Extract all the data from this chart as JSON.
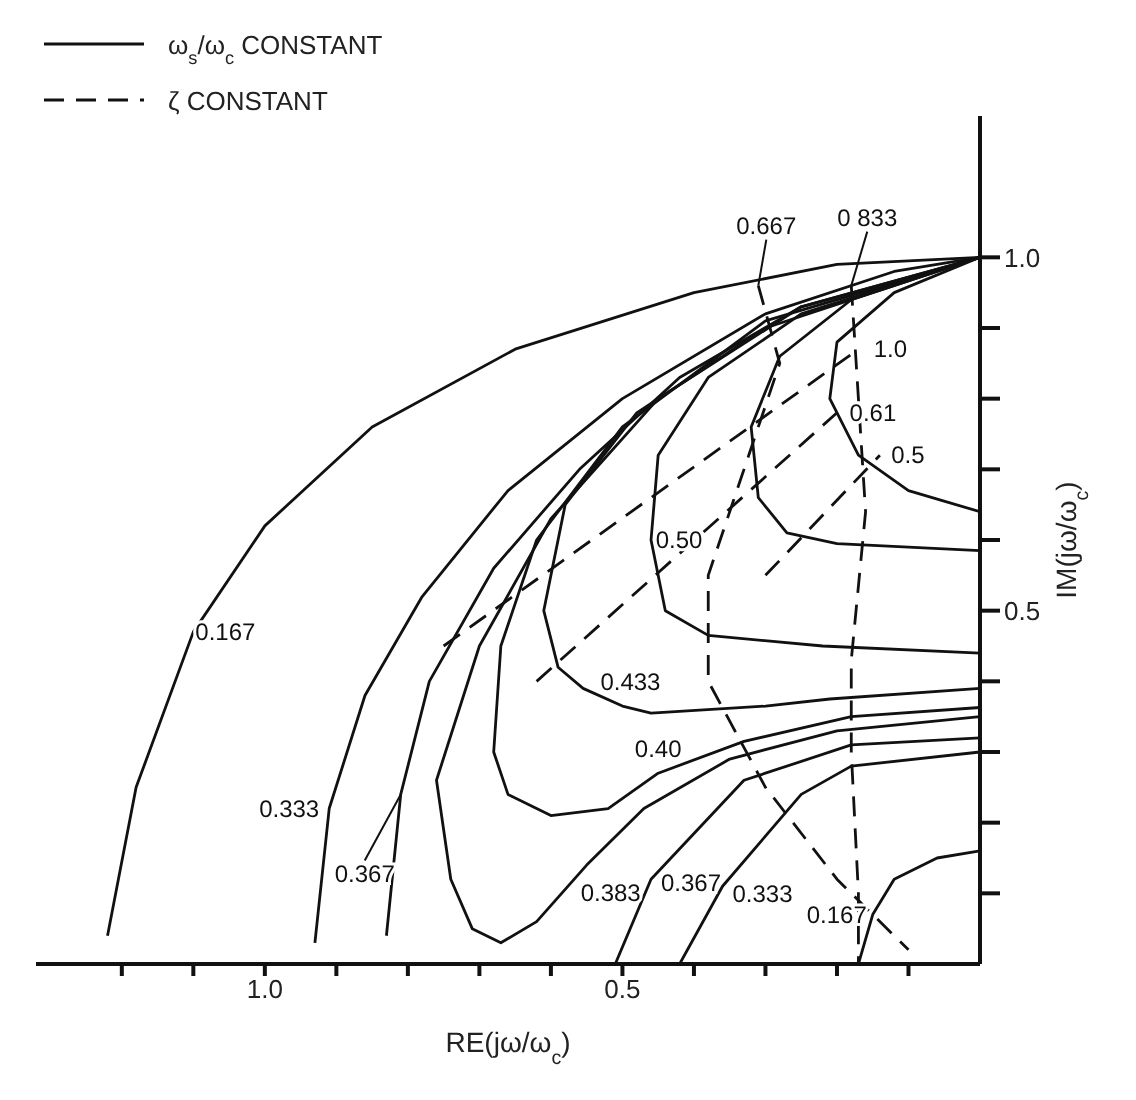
{
  "chart_data": {
    "type": "line",
    "xlabel": "RE(jω/ω$_{c}$)",
    "ylabel": "IM(jω/ω$_{c}$)",
    "xlim": [
      1.32,
      0
    ],
    "ylim": [
      0,
      1.2
    ],
    "xticks": [
      {
        "value": 1.2,
        "label": null
      },
      {
        "value": 1.1,
        "label": null
      },
      {
        "value": 1,
        "label": "1.0"
      },
      {
        "value": 0.9,
        "label": null
      },
      {
        "value": 0.8,
        "label": null
      },
      {
        "value": 0.7,
        "label": null
      },
      {
        "value": 0.6,
        "label": null
      },
      0.5,
      {
        "value": 0.4,
        "label": null
      },
      {
        "value": 0.3,
        "label": null
      },
      {
        "value": 0.2,
        "label": null
      },
      {
        "value": 0.1,
        "label": null
      }
    ],
    "yticks": [
      {
        "value": 0.1,
        "label": null
      },
      {
        "value": 0.2,
        "label": null
      },
      {
        "value": 0.3,
        "label": null
      },
      {
        "value": 0.4,
        "label": null
      },
      0.5,
      {
        "value": 0.6,
        "label": null
      },
      {
        "value": 0.7,
        "label": null
      },
      {
        "value": 0.8,
        "label": null
      },
      {
        "value": 0.9,
        "label": null
      },
      {
        "value": 1,
        "label": "1.0"
      }
    ],
    "grid": false,
    "marker": "none",
    "series": [
      {
        "name": "0.167",
        "color": "#111111",
        "line_style": "solid",
        "x": [
          1.22,
          1.18,
          1.1,
          1.0,
          0.85,
          0.65,
          0.4,
          0.2,
          0
        ],
        "values": [
          0.04,
          0.25,
          0.47,
          0.62,
          0.76,
          0.87,
          0.95,
          0.99,
          1.0
        ]
      },
      {
        "name": "0.333",
        "color": "#111111",
        "line_style": "solid",
        "x": [
          0.93,
          0.91,
          0.86,
          0.78,
          0.66,
          0.5,
          0.3,
          0.12,
          0
        ],
        "values": [
          0.03,
          0.22,
          0.38,
          0.52,
          0.67,
          0.8,
          0.92,
          0.98,
          1.0
        ]
      },
      {
        "name": "0.367",
        "color": "#111111",
        "line_style": "solid",
        "x": [
          0.83,
          0.81,
          0.77,
          0.68,
          0.56,
          0.42,
          0.25,
          0
        ],
        "values": [
          0.04,
          0.24,
          0.4,
          0.56,
          0.7,
          0.83,
          0.93,
          1.0
        ]
      },
      {
        "name": "0.383",
        "color": "#111111",
        "line_style": "solid",
        "x": [
          0,
          0.25,
          0.45,
          0.6,
          0.7,
          0.76,
          0.74,
          0.71,
          0.67,
          0.62,
          0.55,
          0.47,
          0.35,
          0.2,
          0
        ],
        "values": [
          1.0,
          0.93,
          0.8,
          0.63,
          0.45,
          0.26,
          0.12,
          0.05,
          0.03,
          0.06,
          0.14,
          0.22,
          0.29,
          0.33,
          0.35
        ]
      },
      {
        "name": "0.40",
        "color": "#111111",
        "line_style": "solid",
        "x": [
          0,
          0.3,
          0.5,
          0.62,
          0.67,
          0.68,
          0.66,
          0.6,
          0.52,
          0.45,
          0.33,
          0.18,
          0
        ],
        "values": [
          1.0,
          0.91,
          0.76,
          0.6,
          0.45,
          0.3,
          0.24,
          0.21,
          0.22,
          0.27,
          0.315,
          0.35,
          0.363
        ]
      },
      {
        "name": "0.433",
        "color": "#111111",
        "line_style": "solid",
        "x": [
          0,
          0.3,
          0.48,
          0.58,
          0.61,
          0.59,
          0.555,
          0.5,
          0.46,
          0.3,
          0.21,
          0
        ],
        "values": [
          1.0,
          0.9,
          0.78,
          0.65,
          0.5,
          0.42,
          0.39,
          0.365,
          0.355,
          0.365,
          0.375,
          0.39
        ]
      },
      {
        "name": "0.50",
        "color": "#111111",
        "line_style": "solid",
        "x": [
          0,
          0.25,
          0.38,
          0.45,
          0.46,
          0.44,
          0.38,
          0.22,
          0
        ],
        "values": [
          1.0,
          0.92,
          0.83,
          0.72,
          0.6,
          0.5,
          0.465,
          0.45,
          0.44
        ]
      },
      {
        "color": "#111111",
        "line_style": "solid",
        "x": [
          0,
          0.18,
          0.28,
          0.32,
          0.31,
          0.27,
          0.2,
          0
        ],
        "values": [
          1.0,
          0.94,
          0.86,
          0.76,
          0.66,
          0.61,
          0.595,
          0.585
        ]
      },
      {
        "color": "#111111",
        "line_style": "solid",
        "x": [
          0,
          0.12,
          0.2,
          0.21,
          0.17,
          0.1,
          0
        ],
        "values": [
          1.0,
          0.95,
          0.88,
          0.8,
          0.72,
          0.67,
          0.64
        ]
      },
      {
        "name": "0.367",
        "color": "#111111",
        "line_style": "solid",
        "x": [
          0.51,
          0.46,
          0.33,
          0.18,
          0
        ],
        "values": [
          0,
          0.12,
          0.26,
          0.31,
          0.32
        ]
      },
      {
        "name": "0.333",
        "color": "#111111",
        "line_style": "solid",
        "x": [
          0.42,
          0.36,
          0.25,
          0.18,
          0
        ],
        "values": [
          0,
          0.11,
          0.24,
          0.28,
          0.3
        ]
      },
      {
        "name": "0.167",
        "color": "#111111",
        "line_style": "solid",
        "x": [
          0.17,
          0.15,
          0.12,
          0.06,
          0
        ],
        "values": [
          0,
          0.07,
          0.12,
          0.15,
          0.16
        ]
      },
      {
        "name": "1.0",
        "color": "#111111",
        "line_style": "dashed",
        "x": [
          0.75,
          0.17
        ],
        "values": [
          0.45,
          0.87
        ]
      },
      {
        "name": "0.61",
        "color": "#111111",
        "line_style": "dashed",
        "x": [
          0.62,
          0.2
        ],
        "values": [
          0.4,
          0.78
        ]
      },
      {
        "name": "0.5",
        "color": "#111111",
        "line_style": "dashed",
        "x": [
          0.3,
          0.14
        ],
        "values": [
          0.55,
          0.72
        ]
      },
      {
        "name": "0.667",
        "color": "#111111",
        "line_style": "dashed",
        "x": [
          0.31,
          0.28,
          0.33,
          0.38,
          0.38,
          0.3,
          0.2,
          0.1
        ],
        "values": [
          0.96,
          0.85,
          0.7,
          0.55,
          0.4,
          0.25,
          0.12,
          0.02
        ]
      },
      {
        "name": "0 833",
        "color": "#111111",
        "line_style": "dashed",
        "x": [
          0.18,
          0.17,
          0.16,
          0.18,
          0.18,
          0.17,
          0.17
        ],
        "values": [
          0.96,
          0.8,
          0.64,
          0.43,
          0.3,
          0.1,
          0
        ]
      }
    ],
    "annotations": [
      "ω$_{s}$/ω$_{c}$ CONSTANT",
      "ζ CONSTANT"
    ]
  }
}
